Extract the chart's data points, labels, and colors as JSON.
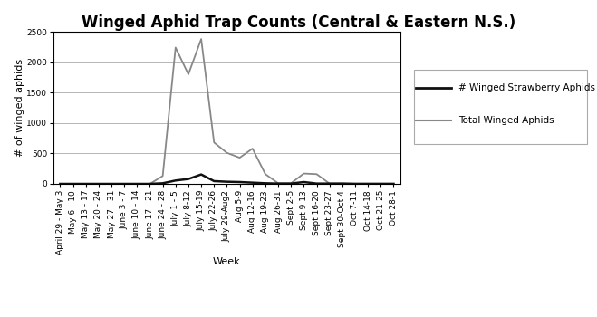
{
  "title": "Winged Aphid Trap Counts (Central & Eastern N.S.)",
  "xlabel": "Week",
  "ylabel": "# of winged aphids",
  "ylim": [
    0,
    2500
  ],
  "yticks": [
    0,
    500,
    1000,
    1500,
    2000,
    2500
  ],
  "weeks": [
    "April 29 - May 3",
    "May 6 - 10",
    "May 13 - 17",
    "May 20 - 24",
    "May 27 - 31",
    "June 3 - 7",
    "June 10 - 14",
    "June 17 - 21",
    "June 24 - 28",
    "July 1 - 5",
    "July 8-12",
    "July 15-19",
    "July 22-26",
    "July 29-Aug2",
    "Aug 5-9",
    "Aug 12-16",
    "Aug 19-23",
    "Aug 26-31",
    "Sept 2-5",
    "Sept 9 13",
    "Sept 16-20",
    "Sept 23-27",
    "Sept 30-Oct 4",
    "Oct 7-11",
    "Oct 14-18",
    "Oct 21-25",
    "Oct 28-1"
  ],
  "total_winged": [
    0,
    0,
    0,
    0,
    0,
    0,
    0,
    0,
    130,
    2240,
    1800,
    2380,
    680,
    510,
    430,
    580,
    160,
    10,
    10,
    170,
    160,
    5,
    5,
    5,
    5,
    5,
    5
  ],
  "strawberry_winged": [
    0,
    0,
    0,
    0,
    0,
    0,
    0,
    0,
    10,
    55,
    80,
    155,
    45,
    35,
    30,
    20,
    10,
    5,
    5,
    30,
    5,
    5,
    5,
    0,
    0,
    0,
    0
  ],
  "total_color": "#888888",
  "strawberry_color": "#111111",
  "background_color": "#ffffff",
  "title_bg": "#cccccc",
  "legend_labels_ordered": [
    "# Winged Strawberry Aphids",
    "Total Winged Aphids"
  ],
  "title_fontsize": 12,
  "axis_fontsize": 8,
  "tick_fontsize": 6.5,
  "legend_fontsize": 7.5
}
